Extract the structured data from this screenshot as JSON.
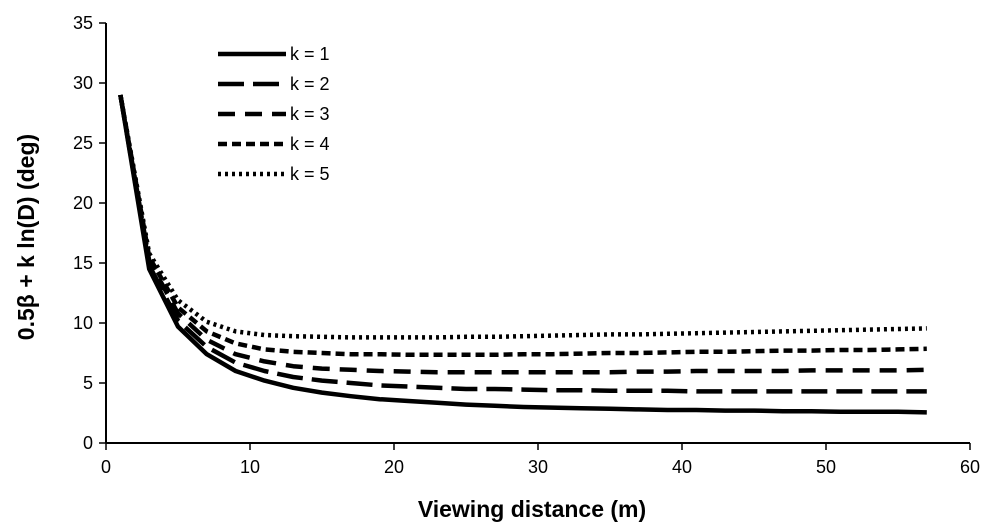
{
  "chart_data": {
    "type": "line",
    "title": "",
    "xlabel": "Viewing distance (m)",
    "ylabel": "0.5β + k ln(D)  (deg)",
    "xlim": [
      0,
      60
    ],
    "ylim": [
      0,
      35
    ],
    "x_ticks": [
      "0",
      "10",
      "20",
      "30",
      "40",
      "50",
      "60"
    ],
    "y_ticks": [
      "0",
      "5",
      "10",
      "15",
      "20",
      "25",
      "30",
      "35"
    ],
    "grid": false,
    "legend_position": "upper-left inside plot",
    "line_color": "#000000",
    "x": [
      1,
      3,
      5,
      7,
      9,
      11,
      13,
      15,
      17,
      19,
      21,
      23,
      25,
      27,
      29,
      31,
      33,
      35,
      37,
      39,
      41,
      43,
      45,
      47,
      49,
      51,
      53,
      55,
      57
    ],
    "series": [
      {
        "name": "k = 1",
        "dash": "solid",
        "values": [
          29.0,
          14.5,
          9.7,
          7.4,
          6.0,
          5.2,
          4.6,
          4.2,
          3.9,
          3.65,
          3.5,
          3.35,
          3.2,
          3.1,
          3.0,
          2.95,
          2.9,
          2.85,
          2.8,
          2.75,
          2.75,
          2.7,
          2.7,
          2.65,
          2.65,
          2.6,
          2.6,
          2.6,
          2.55
        ]
      },
      {
        "name": "k = 2",
        "dash": "long",
        "values": [
          29.0,
          14.8,
          10.2,
          8.0,
          6.7,
          6.0,
          5.5,
          5.2,
          5.0,
          4.8,
          4.7,
          4.6,
          4.5,
          4.5,
          4.45,
          4.4,
          4.4,
          4.35,
          4.35,
          4.35,
          4.3,
          4.3,
          4.3,
          4.3,
          4.3,
          4.3,
          4.3,
          4.3,
          4.3
        ]
      },
      {
        "name": "k = 3",
        "dash": "medium",
        "values": [
          29.0,
          15.2,
          10.8,
          8.6,
          7.4,
          6.8,
          6.4,
          6.2,
          6.1,
          6.0,
          5.95,
          5.9,
          5.9,
          5.9,
          5.9,
          5.9,
          5.9,
          5.9,
          5.95,
          5.95,
          6.0,
          6.0,
          6.0,
          6.0,
          6.05,
          6.05,
          6.05,
          6.05,
          6.1
        ]
      },
      {
        "name": "k = 4",
        "dash": "short",
        "values": [
          29.0,
          15.5,
          11.3,
          9.3,
          8.3,
          7.8,
          7.6,
          7.5,
          7.4,
          7.4,
          7.35,
          7.35,
          7.35,
          7.35,
          7.4,
          7.4,
          7.45,
          7.5,
          7.5,
          7.55,
          7.6,
          7.6,
          7.65,
          7.7,
          7.7,
          7.75,
          7.75,
          7.8,
          7.85
        ]
      },
      {
        "name": "k = 5",
        "dash": "dotted",
        "values": [
          29.0,
          15.8,
          11.9,
          10.1,
          9.3,
          9.0,
          8.9,
          8.85,
          8.8,
          8.8,
          8.8,
          8.8,
          8.85,
          8.85,
          8.9,
          8.95,
          9.0,
          9.05,
          9.05,
          9.1,
          9.15,
          9.2,
          9.25,
          9.3,
          9.35,
          9.4,
          9.45,
          9.5,
          9.55
        ]
      }
    ]
  }
}
